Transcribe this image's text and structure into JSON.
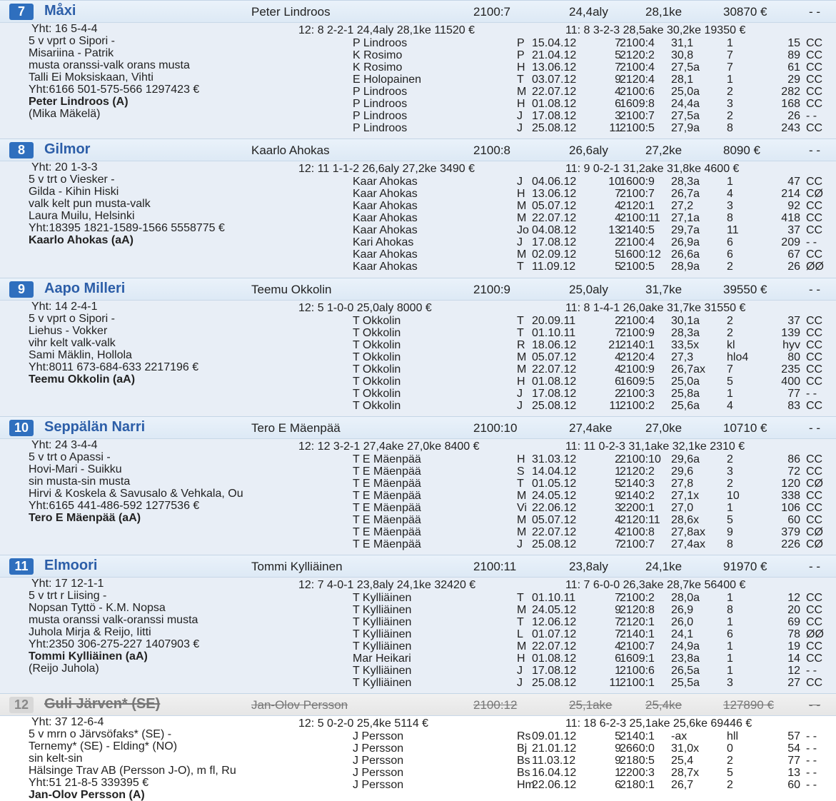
{
  "horses": [
    {
      "num": "7",
      "name": "Måxi",
      "driver": "Peter Lindroos",
      "start": "2100:7",
      "aly": "24,4aly",
      "ke": "28,1ke",
      "prize": "30870 €",
      "mark": "- -",
      "yht": "Yht: 16 5-4-4",
      "stats1": "12: 8 2-2-1 24,4aly 28,1ke 11520 €",
      "stats2": "11: 8 3-2-3 28,5ake 30,2ke 19350 €",
      "info": [
        "5 v vprt o Sipori -",
        "Misariina - Patrik",
        "musta oranssi-valk orans musta",
        "Talli Ei Moksiskaan, Vihti",
        "Yht:6166 501-575-566 1297423 €"
      ],
      "driver_full": "Peter Lindroos (A)",
      "extra": "(Mika Mäkelä)",
      "rows": [
        {
          "d": "P Lindroos",
          "tr": "P",
          "date": "15.04.12",
          "n": "7",
          "dist": "2100:4",
          "time": "31,1",
          "pl": "1",
          "pr": "15",
          "cc": "CC"
        },
        {
          "d": "K Rosimo",
          "tr": "P",
          "date": "21.04.12",
          "n": "5",
          "dist": "2120:2",
          "time": "30,8",
          "pl": "7",
          "pr": "89",
          "cc": "CC"
        },
        {
          "d": "K Rosimo",
          "tr": "H",
          "date": "13.06.12",
          "n": "7",
          "dist": "2100:4",
          "time": "27,5a",
          "pl": "7",
          "pr": "61",
          "cc": "CC"
        },
        {
          "d": "E Holopainen",
          "tr": "T",
          "date": "03.07.12",
          "n": "9",
          "dist": "2120:4",
          "time": "28,1",
          "pl": "1",
          "pr": "29",
          "cc": "CC"
        },
        {
          "d": "P Lindroos",
          "tr": "M",
          "date": "22.07.12",
          "n": "4",
          "dist": "2100:6",
          "time": "25,0a",
          "pl": "2",
          "pr": "282",
          "cc": "CC"
        },
        {
          "d": "P Lindroos",
          "tr": "H",
          "date": "01.08.12",
          "n": "6",
          "dist": "1609:8",
          "time": "24,4a",
          "pl": "3",
          "pr": "168",
          "cc": "CC"
        },
        {
          "d": "P Lindroos",
          "tr": "J",
          "date": "17.08.12",
          "n": "3",
          "dist": "2100:7",
          "time": "27,5a",
          "pl": "2",
          "pr": "26",
          "cc": "- -"
        },
        {
          "d": "P Lindroos",
          "tr": "J",
          "date": "25.08.12",
          "n": "11",
          "dist": "2100:5",
          "time": "27,9a",
          "pl": "8",
          "pr": "243",
          "cc": "CC"
        }
      ]
    },
    {
      "num": "8",
      "name": "Gilmor",
      "driver": "Kaarlo Ahokas",
      "start": "2100:8",
      "aly": "26,6aly",
      "ke": "27,2ke",
      "prize": "8090 €",
      "mark": "- -",
      "yht": "Yht: 20 1-3-3",
      "stats1": "12: 11 1-1-2 26,6aly 27,2ke 3490 €",
      "stats2": "11: 9 0-2-1 31,2ake 31,8ke 4600 €",
      "info": [
        "5 v trt o Viesker -",
        "Gilda - Kihin Hiski",
        "valk kelt pun musta-valk",
        "Laura Muilu, Helsinki",
        "Yht:18395 1821-1589-1566 5558775 €"
      ],
      "driver_full": "Kaarlo Ahokas (aA)",
      "extra": "",
      "rows": [
        {
          "d": "Kaar Ahokas",
          "tr": "J",
          "date": "04.06.12",
          "n": "10",
          "dist": "1600:9",
          "time": "28,3a",
          "pl": "1",
          "pr": "47",
          "cc": "CC"
        },
        {
          "d": "Kaar Ahokas",
          "tr": "H",
          "date": "13.06.12",
          "n": "7",
          "dist": "2100:7",
          "time": "26,7a",
          "pl": "4",
          "pr": "214",
          "cc": "CØ"
        },
        {
          "d": "Kaar Ahokas",
          "tr": "M",
          "date": "05.07.12",
          "n": "4",
          "dist": "2120:1",
          "time": "27,2",
          "pl": "3",
          "pr": "92",
          "cc": "CC"
        },
        {
          "d": "Kaar Ahokas",
          "tr": "M",
          "date": "22.07.12",
          "n": "4",
          "dist": "2100:11",
          "time": "27,1a",
          "pl": "8",
          "pr": "418",
          "cc": "CC"
        },
        {
          "d": "Kaar Ahokas",
          "tr": "Jo",
          "date": "04.08.12",
          "n": "13",
          "dist": "2140:5",
          "time": "29,7a",
          "pl": "11",
          "pr": "37",
          "cc": "CC"
        },
        {
          "d": "Kari Ahokas",
          "tr": "J",
          "date": "17.08.12",
          "n": "2",
          "dist": "2100:4",
          "time": "26,9a",
          "pl": "6",
          "pr": "209",
          "cc": "- -"
        },
        {
          "d": "Kaar Ahokas",
          "tr": "M",
          "date": "02.09.12",
          "n": "5",
          "dist": "1600:12",
          "time": "26,6a",
          "pl": "6",
          "pr": "67",
          "cc": "CC"
        },
        {
          "d": "Kaar Ahokas",
          "tr": "T",
          "date": "11.09.12",
          "n": "5",
          "dist": "2100:5",
          "time": "28,9a",
          "pl": "2",
          "pr": "26",
          "cc": "ØØ"
        }
      ]
    },
    {
      "num": "9",
      "name": "Aapo Milleri",
      "driver": "Teemu Okkolin",
      "start": "2100:9",
      "aly": "25,0aly",
      "ke": "31,7ke",
      "prize": "39550 €",
      "mark": "- -",
      "yht": "Yht: 14 2-4-1",
      "stats1": "12: 5 1-0-0 25,0aly 8000 €",
      "stats2": "11: 8 1-4-1 26,0ake 31,7ke 31550 €",
      "info": [
        "5 v vprt o Sipori -",
        "Liehus - Vokker",
        "vihr kelt valk-valk",
        "Sami Mäklin, Hollola",
        "Yht:8011 673-684-633 2217196 €"
      ],
      "driver_full": "Teemu Okkolin (aA)",
      "extra": "",
      "rows": [
        {
          "d": "T Okkolin",
          "tr": "T",
          "date": "20.09.11",
          "n": "2",
          "dist": "2100:4",
          "time": "30,1a",
          "pl": "2",
          "pr": "37",
          "cc": "CC"
        },
        {
          "d": "T Okkolin",
          "tr": "T",
          "date": "01.10.11",
          "n": "7",
          "dist": "2100:9",
          "time": "28,3a",
          "pl": "2",
          "pr": "139",
          "cc": "CC"
        },
        {
          "d": "T Okkolin",
          "tr": "R",
          "date": "18.06.12",
          "n": "21",
          "dist": "2140:1",
          "time": "33,5x",
          "pl": "kl",
          "pr": "hyv",
          "cc": "CC"
        },
        {
          "d": "T Okkolin",
          "tr": "M",
          "date": "05.07.12",
          "n": "4",
          "dist": "2120:4",
          "time": "27,3",
          "pl": "hlo4",
          "pr": "80",
          "cc": "CC"
        },
        {
          "d": "T Okkolin",
          "tr": "M",
          "date": "22.07.12",
          "n": "4",
          "dist": "2100:9",
          "time": "26,7ax",
          "pl": "7",
          "pr": "235",
          "cc": "CC"
        },
        {
          "d": "T Okkolin",
          "tr": "H",
          "date": "01.08.12",
          "n": "6",
          "dist": "1609:5",
          "time": "25,0a",
          "pl": "5",
          "pr": "400",
          "cc": "CC"
        },
        {
          "d": "T Okkolin",
          "tr": "J",
          "date": "17.08.12",
          "n": "2",
          "dist": "2100:3",
          "time": "25,8a",
          "pl": "1",
          "pr": "77",
          "cc": "- -"
        },
        {
          "d": "T Okkolin",
          "tr": "J",
          "date": "25.08.12",
          "n": "11",
          "dist": "2100:2",
          "time": "25,6a",
          "pl": "4",
          "pr": "83",
          "cc": "CC"
        }
      ]
    },
    {
      "num": "10",
      "name": "Seppälän Narri",
      "driver": "Tero E Mäenpää",
      "start": "2100:10",
      "aly": "27,4ake",
      "ke": "27,0ke",
      "prize": "10710 €",
      "mark": "- -",
      "yht": "Yht: 24 3-4-4",
      "stats1": "12: 12 3-2-1 27,4ake 27,0ke 8400 €",
      "stats2": "11: 11 0-2-3 31,1ake 32,1ke 2310 €",
      "info": [
        "5 v trt o Apassi -",
        "Hovi-Mari - Suikku",
        "sin musta-sin musta",
        "Hirvi & Koskela & Savusalo & Vehkala, Ou",
        "Yht:6165 441-486-592 1277536 €"
      ],
      "driver_full": "Tero E Mäenpää (aA)",
      "extra": "",
      "rows": [
        {
          "d": "T E Mäenpää",
          "tr": "H",
          "date": "31.03.12",
          "n": "2",
          "dist": "2100:10",
          "time": "29,6a",
          "pl": "2",
          "pr": "86",
          "cc": "CC"
        },
        {
          "d": "T E Mäenpää",
          "tr": "S",
          "date": "14.04.12",
          "n": "1",
          "dist": "2120:2",
          "time": "29,6",
          "pl": "3",
          "pr": "72",
          "cc": "CC"
        },
        {
          "d": "T E Mäenpää",
          "tr": "T",
          "date": "01.05.12",
          "n": "5",
          "dist": "2140:3",
          "time": "27,8",
          "pl": "2",
          "pr": "120",
          "cc": "CØ"
        },
        {
          "d": "T E Mäenpää",
          "tr": "M",
          "date": "24.05.12",
          "n": "9",
          "dist": "2140:2",
          "time": "27,1x",
          "pl": "10",
          "pr": "338",
          "cc": "CC"
        },
        {
          "d": "T E Mäenpää",
          "tr": "Vi",
          "date": "22.06.12",
          "n": "3",
          "dist": "2200:1",
          "time": "27,0",
          "pl": "1",
          "pr": "106",
          "cc": "CC"
        },
        {
          "d": "T E Mäenpää",
          "tr": "M",
          "date": "05.07.12",
          "n": "4",
          "dist": "2120:11",
          "time": "28,6x",
          "pl": "5",
          "pr": "60",
          "cc": "CC"
        },
        {
          "d": "T E Mäenpää",
          "tr": "M",
          "date": "22.07.12",
          "n": "4",
          "dist": "2100:8",
          "time": "27,8ax",
          "pl": "9",
          "pr": "379",
          "cc": "CØ"
        },
        {
          "d": "T E Mäenpää",
          "tr": "J",
          "date": "25.08.12",
          "n": "7",
          "dist": "2100:7",
          "time": "27,4ax",
          "pl": "8",
          "pr": "226",
          "cc": "CØ"
        }
      ]
    },
    {
      "num": "11",
      "name": "Elmoori",
      "driver": "Tommi Kylliäinen",
      "start": "2100:11",
      "aly": "23,8aly",
      "ke": "24,1ke",
      "prize": "91970 €",
      "mark": "- -",
      "yht": "Yht: 17 12-1-1",
      "stats1": "12: 7 4-0-1 23,8aly 24,1ke 32420 €",
      "stats2": "11: 7 6-0-0 26,3ake 28,7ke 56400 €",
      "info": [
        "5 v trt r Liising -",
        "Nopsan Tyttö - K.M. Nopsa",
        "musta oranssi valk-oranssi musta",
        "Juhola Mirja & Reijo, Iitti",
        "Yht:2350 306-275-227 1407903 €"
      ],
      "driver_full": "Tommi Kylliäinen (aA)",
      "extra": "(Reijo Juhola)",
      "rows": [
        {
          "d": "T Kylliäinen",
          "tr": "T",
          "date": "01.10.11",
          "n": "7",
          "dist": "2100:2",
          "time": "28,0a",
          "pl": "1",
          "pr": "12",
          "cc": "CC"
        },
        {
          "d": "T Kylliäinen",
          "tr": "M",
          "date": "24.05.12",
          "n": "9",
          "dist": "2120:8",
          "time": "26,9",
          "pl": "8",
          "pr": "20",
          "cc": "CC"
        },
        {
          "d": "T Kylliäinen",
          "tr": "T",
          "date": "12.06.12",
          "n": "7",
          "dist": "2120:1",
          "time": "26,0",
          "pl": "1",
          "pr": "69",
          "cc": "CC"
        },
        {
          "d": "T Kylliäinen",
          "tr": "L",
          "date": "01.07.12",
          "n": "7",
          "dist": "2140:1",
          "time": "24,1",
          "pl": "6",
          "pr": "78",
          "cc": "ØØ"
        },
        {
          "d": "T Kylliäinen",
          "tr": "M",
          "date": "22.07.12",
          "n": "4",
          "dist": "2100:7",
          "time": "24,9a",
          "pl": "1",
          "pr": "19",
          "cc": "CC"
        },
        {
          "d": "Mar Heikari",
          "tr": "H",
          "date": "01.08.12",
          "n": "6",
          "dist": "1609:1",
          "time": "23,8a",
          "pl": "1",
          "pr": "14",
          "cc": "CC"
        },
        {
          "d": "T Kylliäinen",
          "tr": "J",
          "date": "17.08.12",
          "n": "1",
          "dist": "2100:6",
          "time": "26,5a",
          "pl": "1",
          "pr": "12",
          "cc": "- -"
        },
        {
          "d": "T Kylliäinen",
          "tr": "J",
          "date": "25.08.12",
          "n": "11",
          "dist": "2100:1",
          "time": "25,5a",
          "pl": "3",
          "pr": "27",
          "cc": "CC"
        }
      ]
    },
    {
      "num": "12",
      "name": "Guli Järven* (SE)",
      "driver": "Jan-Olov Persson",
      "start": "2100:12",
      "aly": "25,1ake",
      "ke": "25,4ke",
      "prize": "127890 €",
      "mark": "- -",
      "yht": "Yht: 37 12-6-4",
      "stats1": "12: 5 0-2-0 25,4ke 5114 €",
      "stats2": "11: 18 6-2-3 25,1ake 25,6ke 69446 €",
      "info": [
        "5 v mrn o Järvsöfaks* (SE) -",
        "Ternemy* (SE) - Elding* (NO)",
        "sin kelt-sin",
        "Hälsinge Trav AB (Persson J-O), m fl, Ru",
        "Yht:51 21-8-5 339395 €"
      ],
      "driver_full": "Jan-Olov Persson (A)",
      "extra": "",
      "rows": [
        {
          "d": "J Persson",
          "tr": "Rs",
          "date": "09.01.12",
          "n": "5",
          "dist": "2140:1",
          "time": "-ax",
          "pl": "hll",
          "pr": "57",
          "cc": "- -"
        },
        {
          "d": "J Persson",
          "tr": "Bj",
          "date": "21.01.12",
          "n": "9",
          "dist": "2660:0",
          "time": "31,0x",
          "pl": "0",
          "pr": "54",
          "cc": "- -"
        },
        {
          "d": "J Persson",
          "tr": "Bs",
          "date": "11.03.12",
          "n": "9",
          "dist": "2180:5",
          "time": "25,4",
          "pl": "2",
          "pr": "77",
          "cc": "- -"
        },
        {
          "d": "J Persson",
          "tr": "Bs",
          "date": "16.04.12",
          "n": "1",
          "dist": "2200:3",
          "time": "28,7x",
          "pl": "5",
          "pr": "13",
          "cc": "- -"
        },
        {
          "d": "J Persson",
          "tr": "Hm",
          "date": "22.06.12",
          "n": "6",
          "dist": "2180:1",
          "time": "26,7",
          "pl": "2",
          "pr": "60",
          "cc": "- -"
        }
      ]
    }
  ]
}
